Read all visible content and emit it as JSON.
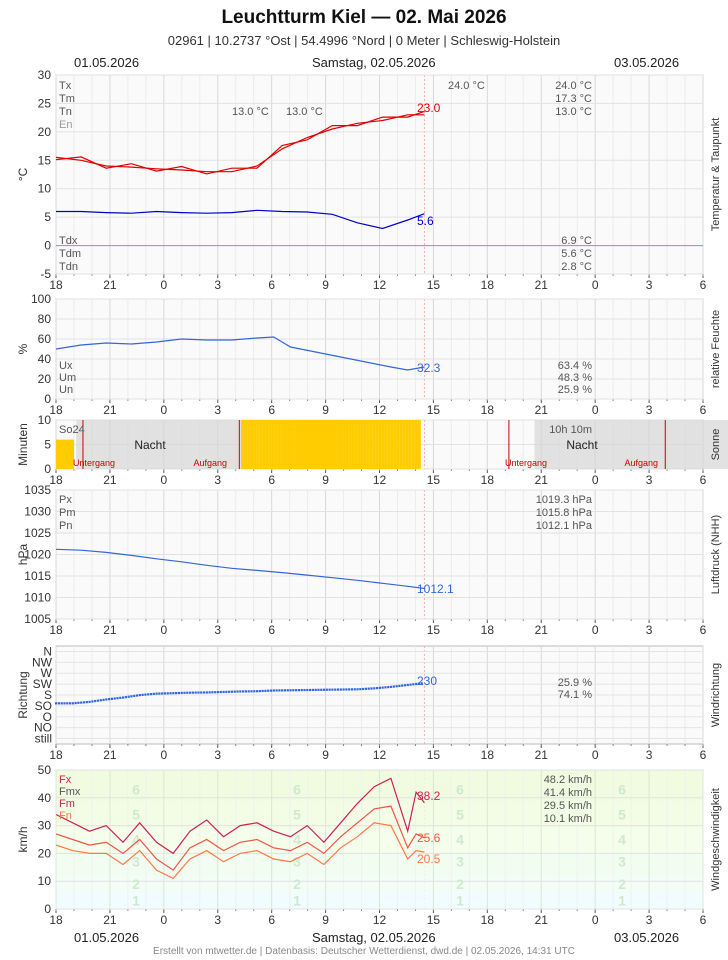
{
  "header": {
    "title": "Leuchtturm Kiel  —  02. Mai 2026",
    "subtitle": "02961  |  10.2737 °Ost  |  54.4996 °Nord  |  0 Meter  |  Schleswig-Holstein"
  },
  "dates": {
    "left": "01.05.2026",
    "center": "Samstag, 02.05.2026",
    "right": "03.05.2026"
  },
  "footer": "Erstellt von mtwetter.de | Datenbasis: Deutscher Wetterdienst, dwd.de | 02.05.2026, 14:31 UTC",
  "x_ticks": [
    "18",
    "21",
    "0",
    "3",
    "6",
    "9",
    "12",
    "15",
    "18",
    "21",
    "0",
    "3",
    "6"
  ],
  "colors": {
    "temp": "#e00000",
    "dew": "#0000cc",
    "blue": "#3366dd",
    "sun": "#ffcc00",
    "gust": "#cc2255",
    "wind": "#ff7744",
    "grid": "#dddddd"
  },
  "chart_data": [
    {
      "type": "line",
      "name": "temperature",
      "side_label": "Temperatur & Taupunkt",
      "ylabel": "°C",
      "ylim": [
        -5,
        30
      ],
      "y_ticks": [
        "30",
        "25",
        "20",
        "15",
        "10",
        "5",
        "0",
        "-5"
      ],
      "x_hours": [
        0,
        3,
        6,
        9,
        12,
        15,
        18,
        21,
        24,
        27,
        30,
        33,
        36,
        39,
        42,
        44
      ],
      "series": [
        {
          "name": "Tm",
          "values": [
            15.5,
            15.0,
            14.0,
            13.8,
            13.5,
            13.3,
            13.0,
            13.0,
            14.0,
            17.0,
            19.0,
            20.5,
            21.5,
            22.0,
            23.0,
            23.0
          ]
        },
        {
          "name": "Tdm",
          "values": [
            6.0,
            6.0,
            5.8,
            5.7,
            6.0,
            5.8,
            5.7,
            5.8,
            6.2,
            6.0,
            5.9,
            5.5,
            4.0,
            3.0,
            4.5,
            5.6
          ]
        }
      ],
      "legend_left_top": [
        "Tx",
        "Tm",
        "Tn",
        "En"
      ],
      "legend_left_bottom": [
        "Tdx",
        "Tdm",
        "Tdn"
      ],
      "stats_top": [
        "24.0 °C",
        "17.3 °C",
        "13.0 °C"
      ],
      "stats_bottom": [
        "6.9 °C",
        "5.6 °C",
        "2.8 °C"
      ],
      "annotations": [
        "13.0 °C",
        "13.0 °C",
        "24.0 °C"
      ],
      "current": [
        "23.0",
        "5.6"
      ]
    },
    {
      "type": "line",
      "name": "humidity",
      "side_label": "relative Feuchte",
      "ylabel": "%",
      "ylim": [
        0,
        100
      ],
      "y_ticks": [
        "100",
        "80",
        "60",
        "40",
        "20",
        "0"
      ],
      "x_hours": [
        0,
        3,
        6,
        9,
        12,
        15,
        18,
        21,
        24,
        26,
        28,
        31,
        34,
        37,
        40,
        42,
        44
      ],
      "series": [
        {
          "name": "Um",
          "values": [
            50,
            54,
            56,
            55,
            57,
            60,
            59,
            59,
            61,
            62,
            52,
            47,
            42,
            37,
            32,
            29,
            32
          ]
        }
      ],
      "legend_left": [
        "Ux",
        "Um",
        "Un"
      ],
      "stats": [
        "63.4 %",
        "48.3 %",
        "25.9 %"
      ],
      "current": "32.3"
    },
    {
      "type": "bar",
      "name": "sunshine",
      "side_label": "Sonne",
      "ylabel": "Minuten",
      "ylim": [
        0,
        10
      ],
      "y_ticks": [
        "10",
        "5",
        "0"
      ],
      "labels": [
        "So24",
        "Nacht",
        "Untergang",
        "Aufgang",
        "10h 10m",
        "Nacht",
        "Untergang",
        "Aufgang"
      ]
    },
    {
      "type": "line",
      "name": "pressure",
      "side_label": "Luftdruck (NHH)",
      "ylabel": "hPa",
      "ylim": [
        1005,
        1035
      ],
      "y_ticks": [
        "1035",
        "1030",
        "1025",
        "1020",
        "1015",
        "1010",
        "1005"
      ],
      "x_hours": [
        0,
        3,
        6,
        9,
        12,
        15,
        18,
        21,
        24,
        27,
        30,
        33,
        36,
        39,
        42,
        44
      ],
      "series": [
        {
          "name": "Pm",
          "values": [
            1021.2,
            1021.0,
            1020.5,
            1019.8,
            1019.0,
            1018.3,
            1017.5,
            1016.8,
            1016.3,
            1015.8,
            1015.2,
            1014.6,
            1014.0,
            1013.3,
            1012.6,
            1012.1
          ]
        }
      ],
      "legend_left": [
        "Px",
        "Pm",
        "Pn"
      ],
      "stats": [
        "1019.3 hPa",
        "1015.8 hPa",
        "1012.1 hPa"
      ],
      "current": "1012.1"
    },
    {
      "type": "scatter",
      "name": "wind_direction",
      "side_label": "Windrichtung",
      "ylabel": "Richtung",
      "y_categories": [
        "N",
        "NW",
        "W",
        "SW",
        "S",
        "SO",
        "O",
        "NO",
        "still"
      ],
      "x_hours": [
        0,
        2,
        4,
        6,
        8,
        10,
        12,
        14,
        16,
        18,
        20,
        22,
        24,
        26,
        28,
        30,
        32,
        34,
        36,
        38,
        40,
        42,
        44
      ],
      "series": [
        {
          "name": "Richtung",
          "values": [
            146,
            146,
            152,
            162,
            170,
            180,
            186,
            188,
            190,
            191,
            193,
            195,
            196,
            199,
            200,
            201,
            202,
            203,
            204,
            208,
            214,
            222,
            230
          ]
        }
      ],
      "stats": [
        "25.9 %",
        "74.1 %"
      ],
      "current": "230"
    },
    {
      "type": "line",
      "name": "wind_speed",
      "side_label": "Windgeschwindigkeit",
      "ylabel": "km/h",
      "ylim": [
        0,
        50
      ],
      "y_ticks": [
        "50",
        "40",
        "30",
        "20",
        "10",
        "0"
      ],
      "beaufort": [
        "6",
        "5",
        "4",
        "3",
        "2",
        "1"
      ],
      "x_hours": [
        0,
        2,
        4,
        6,
        8,
        10,
        12,
        14,
        16,
        18,
        20,
        22,
        24,
        26,
        28,
        30,
        32,
        34,
        36,
        38,
        40,
        42,
        43,
        44
      ],
      "series": [
        {
          "name": "Fx",
          "values": [
            34,
            31,
            28,
            30,
            24,
            31,
            24,
            20,
            28,
            32,
            26,
            30,
            31,
            28,
            26,
            30,
            24,
            31,
            38,
            44,
            47,
            28,
            42,
            38.2
          ]
        },
        {
          "name": "Fm",
          "values": [
            27,
            25,
            23,
            24,
            20,
            25,
            18,
            14,
            22,
            25,
            21,
            24,
            25,
            22,
            21,
            24,
            20,
            26,
            31,
            36,
            37,
            22,
            27,
            25.6
          ]
        },
        {
          "name": "Fn",
          "values": [
            23,
            21,
            20,
            20,
            16,
            21,
            14,
            11,
            18,
            21,
            17,
            20,
            21,
            18,
            17,
            20,
            16,
            22,
            26,
            31,
            30,
            18,
            21,
            20.5
          ]
        }
      ],
      "legend_left": [
        "Fx",
        "Fmx",
        "Fm",
        "Fn"
      ],
      "stats": [
        "48.2 km/h",
        "41.4 km/h",
        "29.5 km/h",
        "10.1 km/h"
      ],
      "current": [
        "38.2",
        "25.6",
        "20.5"
      ]
    }
  ]
}
